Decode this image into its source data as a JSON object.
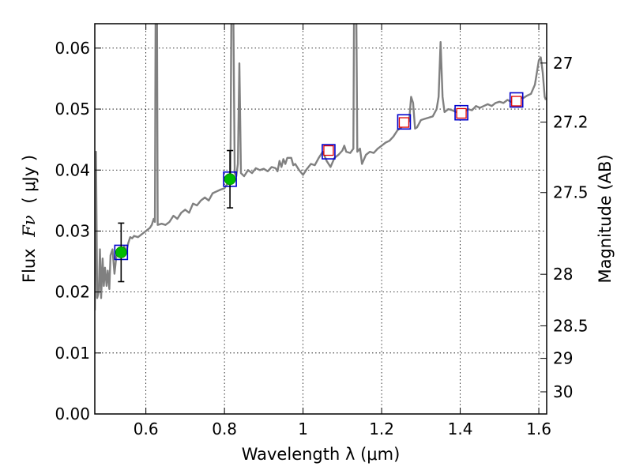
{
  "chart_data": {
    "type": "line",
    "xlabel": "Wavelength  λ (μm)",
    "ylabel": "Flux  Fν  ( μJy )",
    "ylabel_parts": {
      "prefix": "Flux",
      "symbol": "Fν",
      "unit": "( μJy )"
    },
    "y2label": "Magnitude (AB)",
    "xlim": [
      0.47,
      1.62
    ],
    "ylim": [
      0.0,
      0.064
    ],
    "grid": true,
    "xticks": [
      {
        "value": 0.6,
        "label": "0.6"
      },
      {
        "value": 0.8,
        "label": "0.8"
      },
      {
        "value": 1.0,
        "label": "1"
      },
      {
        "value": 1.2,
        "label": "1.2"
      },
      {
        "value": 1.4,
        "label": "1.4"
      },
      {
        "value": 1.6,
        "label": "1.6"
      }
    ],
    "yticks": [
      {
        "value": 0.0,
        "label": "0.00"
      },
      {
        "value": 0.01,
        "label": "0.01"
      },
      {
        "value": 0.02,
        "label": "0.02"
      },
      {
        "value": 0.03,
        "label": "0.03"
      },
      {
        "value": 0.04,
        "label": "0.04"
      },
      {
        "value": 0.05,
        "label": "0.05"
      },
      {
        "value": 0.06,
        "label": "0.06"
      }
    ],
    "y2ticks": [
      {
        "mag": 27,
        "label": "27"
      },
      {
        "mag": 27.2,
        "label": "27.2"
      },
      {
        "mag": 27.5,
        "label": "27.5"
      },
      {
        "mag": 28,
        "label": "28"
      },
      {
        "mag": 28.5,
        "label": "28.5"
      },
      {
        "mag": 29,
        "label": "29"
      },
      {
        "mag": 30,
        "label": "30"
      }
    ],
    "series": [
      {
        "name": "model-spectrum",
        "color": "#808080",
        "points": [
          [
            0.47,
            0.017
          ],
          [
            0.473,
            0.043
          ],
          [
            0.476,
            0.019
          ],
          [
            0.48,
            0.02
          ],
          [
            0.483,
            0.027
          ],
          [
            0.486,
            0.019
          ],
          [
            0.49,
            0.0255
          ],
          [
            0.493,
            0.021
          ],
          [
            0.496,
            0.024
          ],
          [
            0.5,
            0.021
          ],
          [
            0.503,
            0.0235
          ],
          [
            0.507,
            0.0205
          ],
          [
            0.51,
            0.026
          ],
          [
            0.515,
            0.027
          ],
          [
            0.52,
            0.023
          ],
          [
            0.525,
            0.026
          ],
          [
            0.53,
            0.0265
          ],
          [
            0.535,
            0.027
          ],
          [
            0.54,
            0.0268
          ],
          [
            0.545,
            0.0275
          ],
          [
            0.55,
            0.0265
          ],
          [
            0.555,
            0.028
          ],
          [
            0.56,
            0.029
          ],
          [
            0.565,
            0.0288
          ],
          [
            0.57,
            0.0292
          ],
          [
            0.58,
            0.029
          ],
          [
            0.59,
            0.0295
          ],
          [
            0.6,
            0.03
          ],
          [
            0.61,
            0.0305
          ],
          [
            0.615,
            0.031
          ],
          [
            0.62,
            0.032
          ],
          [
            0.623,
            0.0315
          ],
          [
            0.625,
            0.07
          ],
          [
            0.628,
            0.07
          ],
          [
            0.63,
            0.031
          ],
          [
            0.64,
            0.0312
          ],
          [
            0.65,
            0.031
          ],
          [
            0.66,
            0.0315
          ],
          [
            0.67,
            0.0325
          ],
          [
            0.68,
            0.032
          ],
          [
            0.69,
            0.033
          ],
          [
            0.7,
            0.0335
          ],
          [
            0.71,
            0.033
          ],
          [
            0.72,
            0.0345
          ],
          [
            0.73,
            0.0342
          ],
          [
            0.74,
            0.035
          ],
          [
            0.75,
            0.0355
          ],
          [
            0.76,
            0.035
          ],
          [
            0.77,
            0.0362
          ],
          [
            0.78,
            0.0365
          ],
          [
            0.79,
            0.0368
          ],
          [
            0.8,
            0.037
          ],
          [
            0.805,
            0.0375
          ],
          [
            0.81,
            0.038
          ],
          [
            0.815,
            0.0385
          ],
          [
            0.818,
            0.07
          ],
          [
            0.822,
            0.07
          ],
          [
            0.826,
            0.0395
          ],
          [
            0.83,
            0.039
          ],
          [
            0.834,
            0.041
          ],
          [
            0.838,
            0.0575
          ],
          [
            0.842,
            0.0395
          ],
          [
            0.85,
            0.039
          ],
          [
            0.86,
            0.04
          ],
          [
            0.87,
            0.0395
          ],
          [
            0.88,
            0.0403
          ],
          [
            0.89,
            0.04
          ],
          [
            0.9,
            0.0402
          ],
          [
            0.91,
            0.0398
          ],
          [
            0.92,
            0.0405
          ],
          [
            0.93,
            0.0403
          ],
          [
            0.935,
            0.0398
          ],
          [
            0.94,
            0.0415
          ],
          [
            0.945,
            0.0405
          ],
          [
            0.95,
            0.0418
          ],
          [
            0.955,
            0.041
          ],
          [
            0.96,
            0.042
          ],
          [
            0.97,
            0.042
          ],
          [
            0.975,
            0.0408
          ],
          [
            0.98,
            0.041
          ],
          [
            0.99,
            0.04
          ],
          [
            1.0,
            0.0392
          ],
          [
            1.01,
            0.0402
          ],
          [
            1.02,
            0.041
          ],
          [
            1.03,
            0.0408
          ],
          [
            1.04,
            0.042
          ],
          [
            1.05,
            0.043
          ],
          [
            1.06,
            0.0415
          ],
          [
            1.07,
            0.0405
          ],
          [
            1.08,
            0.042
          ],
          [
            1.09,
            0.0425
          ],
          [
            1.1,
            0.0432
          ],
          [
            1.105,
            0.044
          ],
          [
            1.11,
            0.043
          ],
          [
            1.12,
            0.0428
          ],
          [
            1.128,
            0.0435
          ],
          [
            1.13,
            0.07
          ],
          [
            1.135,
            0.07
          ],
          [
            1.138,
            0.043
          ],
          [
            1.145,
            0.0435
          ],
          [
            1.15,
            0.041
          ],
          [
            1.16,
            0.0425
          ],
          [
            1.17,
            0.043
          ],
          [
            1.18,
            0.0428
          ],
          [
            1.19,
            0.0435
          ],
          [
            1.2,
            0.044
          ],
          [
            1.21,
            0.0445
          ],
          [
            1.22,
            0.0448
          ],
          [
            1.23,
            0.0455
          ],
          [
            1.24,
            0.0465
          ],
          [
            1.25,
            0.047
          ],
          [
            1.26,
            0.0475
          ],
          [
            1.27,
            0.048
          ],
          [
            1.275,
            0.052
          ],
          [
            1.28,
            0.051
          ],
          [
            1.285,
            0.0468
          ],
          [
            1.29,
            0.047
          ],
          [
            1.3,
            0.0482
          ],
          [
            1.31,
            0.0484
          ],
          [
            1.32,
            0.0486
          ],
          [
            1.33,
            0.0488
          ],
          [
            1.34,
            0.05
          ],
          [
            1.345,
            0.052
          ],
          [
            1.35,
            0.061
          ],
          [
            1.355,
            0.052
          ],
          [
            1.36,
            0.0495
          ],
          [
            1.37,
            0.05
          ],
          [
            1.38,
            0.0498
          ],
          [
            1.39,
            0.0495
          ],
          [
            1.4,
            0.0492
          ],
          [
            1.41,
            0.0495
          ],
          [
            1.42,
            0.05
          ],
          [
            1.43,
            0.0498
          ],
          [
            1.44,
            0.0505
          ],
          [
            1.45,
            0.0502
          ],
          [
            1.46,
            0.0505
          ],
          [
            1.47,
            0.0508
          ],
          [
            1.48,
            0.0505
          ],
          [
            1.49,
            0.051
          ],
          [
            1.5,
            0.0512
          ],
          [
            1.51,
            0.051
          ],
          [
            1.52,
            0.0515
          ],
          [
            1.53,
            0.0512
          ],
          [
            1.54,
            0.0518
          ],
          [
            1.55,
            0.052
          ],
          [
            1.56,
            0.0518
          ],
          [
            1.57,
            0.0522
          ],
          [
            1.58,
            0.0525
          ],
          [
            1.59,
            0.054
          ],
          [
            1.6,
            0.058
          ],
          [
            1.605,
            0.0585
          ],
          [
            1.61,
            0.056
          ],
          [
            1.615,
            0.052
          ],
          [
            1.618,
            0.0515
          ]
        ]
      }
    ],
    "model_points": [
      {
        "x": 0.537,
        "y": 0.0265
      },
      {
        "x": 0.814,
        "y": 0.0385
      },
      {
        "x": 1.065,
        "y": 0.043
      },
      {
        "x": 1.257,
        "y": 0.0479
      },
      {
        "x": 1.403,
        "y": 0.0494
      },
      {
        "x": 1.543,
        "y": 0.0515
      }
    ],
    "model_points_style": {
      "marker": "square",
      "color": "#0000cc"
    },
    "observed_points": [
      {
        "x": 0.537,
        "y": 0.0265,
        "err": 0.0048
      },
      {
        "x": 0.814,
        "y": 0.0385,
        "err": 0.0047
      }
    ],
    "observed_style": {
      "marker": "circle",
      "color": "#00bb00",
      "errcolor": "#000000"
    },
    "synthetic_points": [
      {
        "x": 1.065,
        "y": 0.0432
      },
      {
        "x": 1.257,
        "y": 0.0478
      },
      {
        "x": 1.403,
        "y": 0.0493
      },
      {
        "x": 1.543,
        "y": 0.0513
      }
    ],
    "synthetic_style": {
      "marker": "square-open",
      "color": "#dd0000"
    }
  }
}
